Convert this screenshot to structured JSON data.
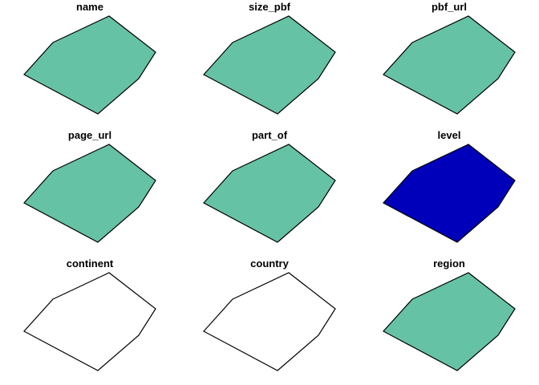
{
  "legend": {
    "colors": {
      "filled_teal": "#66C2A5",
      "filled_blue": "#0000BB",
      "empty": "#FFFFFF",
      "outline": "#000000"
    }
  },
  "panels": [
    {
      "title": "name",
      "fill": "#66C2A5"
    },
    {
      "title": "size_pbf",
      "fill": "#66C2A5"
    },
    {
      "title": "pbf_url",
      "fill": "#66C2A5"
    },
    {
      "title": "page_url",
      "fill": "#66C2A5"
    },
    {
      "title": "part_of",
      "fill": "#66C2A5"
    },
    {
      "title": "level",
      "fill": "#0000BB"
    },
    {
      "title": "continent",
      "fill": "#FFFFFF"
    },
    {
      "title": "country",
      "fill": "#FFFFFF"
    },
    {
      "title": "region",
      "fill": "#66C2A5"
    }
  ]
}
